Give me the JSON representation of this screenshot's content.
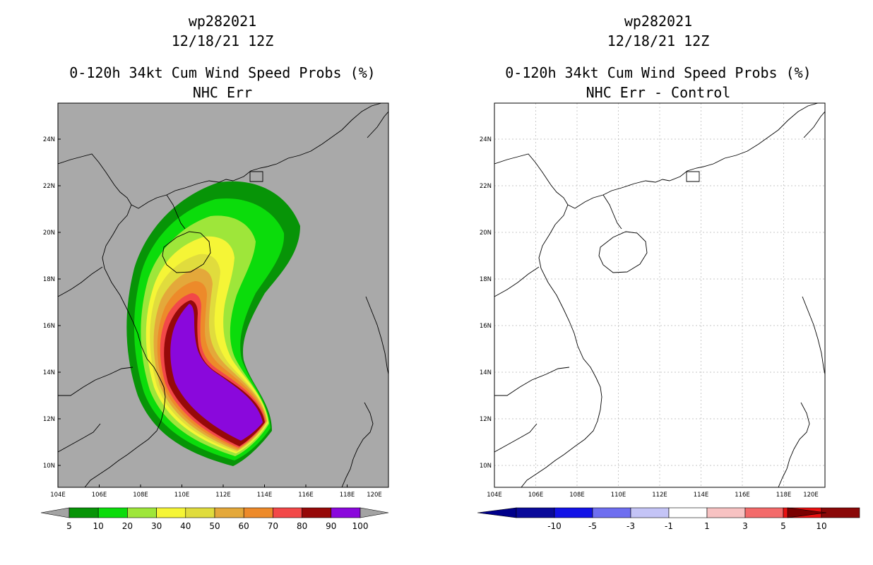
{
  "left": {
    "storm": "wp282021",
    "date": "12/18/21 12Z",
    "product": "0-120h 34kt Cum Wind Speed Probs (%)",
    "subtitle": "NHC Err",
    "colorbar": {
      "labels": [
        "5",
        "10",
        "20",
        "30",
        "40",
        "50",
        "60",
        "70",
        "80",
        "90",
        "100"
      ],
      "colors": [
        "#079407",
        "#0bdc0b",
        "#9ee63a",
        "#f5f536",
        "#e0dc3d",
        "#e4a83a",
        "#ed8a2a",
        "#f24848",
        "#960909",
        "#8a08dc"
      ],
      "end_color": "#a3a3a3"
    }
  },
  "right": {
    "storm": "wp282021",
    "date": "12/18/21 12Z",
    "product": "0-120h 34kt Cum Wind Speed Probs (%)",
    "subtitle": "NHC Err - Control",
    "colorbar": {
      "labels": [
        "-10",
        "-5",
        "-3",
        "-1",
        "1",
        "3",
        "5",
        "10"
      ],
      "colors": [
        "#0a0a9a",
        "#1212e6",
        "#6e6ef0",
        "#c4c4f6",
        "#ffffff",
        "#f7c2c2",
        "#f36a6a",
        "#ea1010",
        "#8a0808"
      ],
      "end_left": "#00008a",
      "end_right": "#7a0000"
    }
  },
  "map": {
    "lon_ticks": [
      "104E",
      "106E",
      "108E",
      "110E",
      "112E",
      "114E",
      "116E",
      "118E",
      "120E"
    ],
    "lat_ticks": [
      "24N",
      "22N",
      "20N",
      "18N",
      "16N",
      "14N",
      "12N",
      "10N"
    ],
    "land_sea_fill": "#a9a9a9",
    "probability_contours": [
      {
        "level": 5,
        "color": "#079407"
      },
      {
        "level": 10,
        "color": "#0bdc0b"
      },
      {
        "level": 20,
        "color": "#9ee63a"
      },
      {
        "level": 30,
        "color": "#f5f536"
      },
      {
        "level": 40,
        "color": "#e0dc3d"
      },
      {
        "level": 50,
        "color": "#e4a83a"
      },
      {
        "level": 60,
        "color": "#ed8a2a"
      },
      {
        "level": 70,
        "color": "#f24848"
      },
      {
        "level": 80,
        "color": "#960909"
      },
      {
        "level": 90,
        "color": "#8a08dc"
      }
    ]
  }
}
